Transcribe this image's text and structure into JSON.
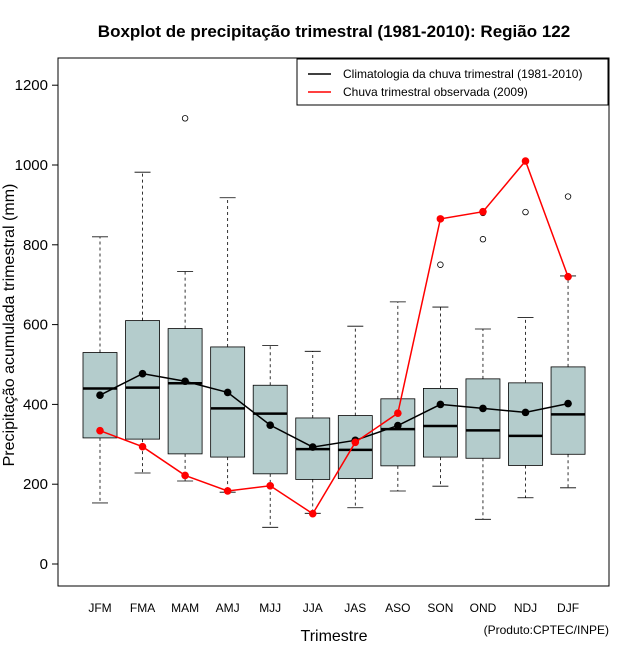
{
  "chart_data": {
    "type": "boxplot",
    "title": "Boxplot de precipitação trimestral (1981-2010): Região 122",
    "xlabel": "Trimestre",
    "ylabel": "Precipitação acumulada trimestral (mm)",
    "ylim": [
      -55,
      1265
    ],
    "yticks": [
      0,
      200,
      400,
      600,
      800,
      1000,
      1200
    ],
    "categories": [
      "JFM",
      "FMA",
      "MAM",
      "AMJ",
      "MJJ",
      "JJA",
      "JAS",
      "ASO",
      "SON",
      "OND",
      "NDJ",
      "DJF"
    ],
    "boxes": [
      {
        "min": 153,
        "q1": 316,
        "median": 440,
        "q3": 530,
        "max": 820,
        "outliers": []
      },
      {
        "min": 228,
        "q1": 313,
        "median": 442,
        "q3": 610,
        "max": 982,
        "outliers": []
      },
      {
        "min": 208,
        "q1": 276,
        "median": 453,
        "q3": 590,
        "max": 733,
        "outliers": [
          1117
        ]
      },
      {
        "min": 180,
        "q1": 268,
        "median": 390,
        "q3": 544,
        "max": 918,
        "outliers": []
      },
      {
        "min": 92,
        "q1": 226,
        "median": 377,
        "q3": 448,
        "max": 548,
        "outliers": []
      },
      {
        "min": 127,
        "q1": 212,
        "median": 288,
        "q3": 366,
        "max": 533,
        "outliers": []
      },
      {
        "min": 141,
        "q1": 214,
        "median": 286,
        "q3": 372,
        "max": 596,
        "outliers": []
      },
      {
        "min": 183,
        "q1": 246,
        "median": 338,
        "q3": 414,
        "max": 657,
        "outliers": []
      },
      {
        "min": 195,
        "q1": 268,
        "median": 346,
        "q3": 440,
        "max": 644,
        "outliers": [
          750
        ]
      },
      {
        "min": 112,
        "q1": 265,
        "median": 335,
        "q3": 464,
        "max": 589,
        "outliers": [
          814,
          880
        ]
      },
      {
        "min": 166,
        "q1": 247,
        "median": 321,
        "q3": 454,
        "max": 618,
        "outliers": [
          882
        ]
      },
      {
        "min": 191,
        "q1": 275,
        "median": 375,
        "q3": 494,
        "max": 722,
        "outliers": [
          921
        ]
      }
    ],
    "series": [
      {
        "name": "Climatologia da chuva trimestral (1981-2010)",
        "color": "#000000",
        "values": [
          423,
          477,
          458,
          430,
          348,
          293,
          310,
          347,
          400,
          390,
          380,
          402
        ]
      },
      {
        "name": "Chuva trimestral observada (2009)",
        "color": "#ff0000",
        "values": [
          334,
          294,
          222,
          183,
          196,
          126,
          305,
          378,
          865,
          883,
          1010,
          720
        ]
      }
    ],
    "legend_position": "top-right",
    "box_fill": "#b4cccc",
    "credit": "(Produto:CPTEC/INPE)"
  }
}
